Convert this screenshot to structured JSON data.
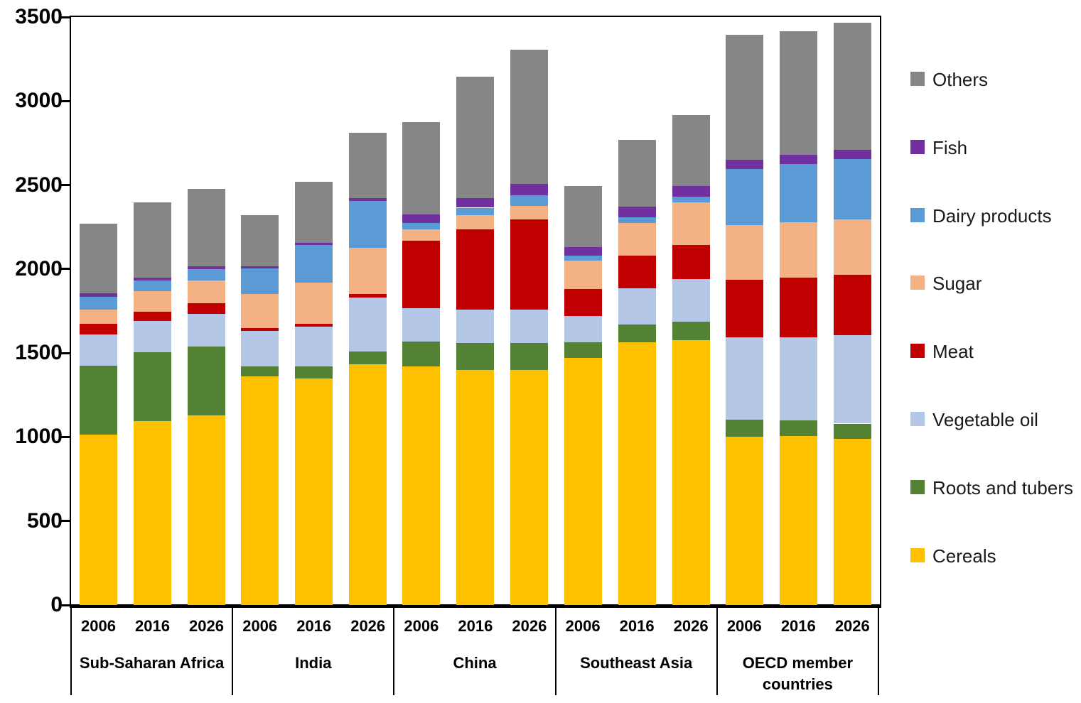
{
  "chart_data": {
    "type": "bar",
    "stacked": true,
    "title": "",
    "xlabel": "",
    "ylabel": "",
    "ylim": [
      0,
      3500
    ],
    "ytick_step": 500,
    "y_tick_labels": [
      "0",
      "500",
      "1000",
      "1500",
      "2000",
      "2500",
      "3000",
      "3500"
    ],
    "grid": false,
    "legend_position": "right",
    "group_labels": [
      "Sub-Saharan Africa",
      "India",
      "China",
      "Southeast Asia",
      "OECD member countries"
    ],
    "bar_labels_per_group": [
      "2006",
      "2016",
      "2026"
    ],
    "bar_order_note": "values arrays hold 15 bars: 3 years x 5 regions, left to right",
    "series": [
      {
        "name": "Cereals",
        "color": "#FFC000",
        "values": [
          1015,
          1095,
          1130,
          1360,
          1350,
          1435,
          1420,
          1400,
          1400,
          1470,
          1565,
          1575,
          1000,
          1005,
          990
        ]
      },
      {
        "name": "Roots and tubers",
        "color": "#548235",
        "values": [
          410,
          410,
          410,
          60,
          70,
          75,
          150,
          160,
          160,
          95,
          105,
          110,
          105,
          95,
          90
        ]
      },
      {
        "name": "Vegetable oil",
        "color": "#B4C7E7",
        "values": [
          185,
          185,
          195,
          210,
          235,
          320,
          195,
          200,
          200,
          155,
          215,
          255,
          490,
          495,
          525
        ]
      },
      {
        "name": "Meat",
        "color": "#C00000",
        "values": [
          65,
          55,
          60,
          20,
          20,
          20,
          405,
          475,
          535,
          160,
          195,
          205,
          340,
          355,
          360
        ]
      },
      {
        "name": "Sugar",
        "color": "#F4B183",
        "values": [
          85,
          125,
          135,
          200,
          245,
          275,
          65,
          85,
          80,
          170,
          195,
          250,
          325,
          330,
          330
        ]
      },
      {
        "name": "Dairy products",
        "color": "#5B9BD5",
        "values": [
          75,
          60,
          70,
          155,
          225,
          280,
          40,
          45,
          65,
          30,
          35,
          35,
          335,
          345,
          360
        ]
      },
      {
        "name": "Fish",
        "color": "#7030A0",
        "values": [
          20,
          20,
          15,
          10,
          10,
          15,
          50,
          55,
          65,
          50,
          60,
          65,
          55,
          55,
          55
        ]
      },
      {
        "name": "Others",
        "color": "#868686",
        "textured": true,
        "values": [
          415,
          445,
          460,
          305,
          365,
          390,
          550,
          725,
          800,
          365,
          400,
          420,
          745,
          735,
          755
        ]
      }
    ],
    "totals": [
      2270,
      2395,
      2475,
      2320,
      2520,
      2810,
      2875,
      3145,
      3305,
      2495,
      2770,
      2915,
      3395,
      3415,
      3465
    ],
    "legend": [
      {
        "label": "Others",
        "color": "#868686",
        "textured": true
      },
      {
        "label": "Fish",
        "color": "#7030A0"
      },
      {
        "label": "Dairy products",
        "color": "#5B9BD5"
      },
      {
        "label": "Sugar",
        "color": "#F4B183"
      },
      {
        "label": "Meat",
        "color": "#C00000"
      },
      {
        "label": "Vegetable oil",
        "color": "#B4C7E7"
      },
      {
        "label": "Roots and tubers",
        "color": "#548235"
      },
      {
        "label": "Cereals",
        "color": "#FFC000"
      }
    ]
  }
}
